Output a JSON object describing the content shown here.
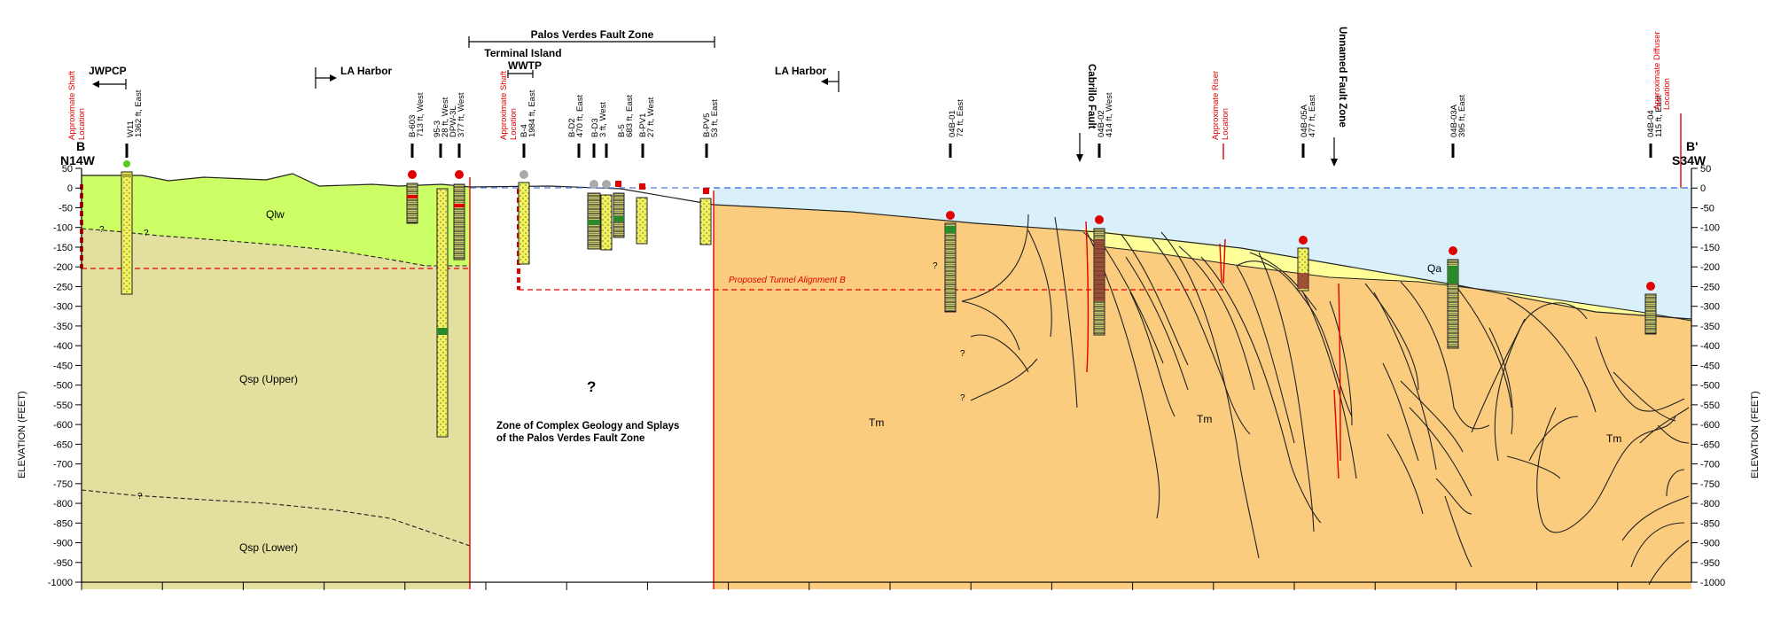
{
  "section": {
    "left_label": "B",
    "left_bearing": "N14W",
    "right_label": "B'",
    "right_bearing": "S34W",
    "y_axis_label": "ELEVATION (FEET)",
    "y_ticks": [
      "50",
      "0",
      "-50",
      "-100",
      "-150",
      "-200",
      "-250",
      "-300",
      "-350",
      "-400",
      "-450",
      "-500",
      "-550",
      "-600",
      "-650",
      "-700",
      "-750",
      "-800",
      "-850",
      "-900",
      "-950",
      "-1000"
    ]
  },
  "top_labels": {
    "jwpcp": "JWPCP",
    "la_harbor_1": "LA Harbor",
    "la_harbor_2": "LA Harbor",
    "pv_fault_zone": "Palos Verdes Fault Zone",
    "terminal_island": "Terminal Island",
    "wwtp": "WWTP",
    "cabrillo_fault": "Cabrillo Fault",
    "unnamed_fault": "Unnamed Fault Zone"
  },
  "red_notes": {
    "shaft_left": [
      "Approximate Shaft",
      "Location"
    ],
    "shaft_mid": [
      "Approximate Shaft",
      "Location"
    ],
    "riser": [
      "Approximate Riser",
      "Location"
    ],
    "diffuser": [
      "Approximate Diffuser",
      "Location"
    ],
    "tunnel": "Proposed Tunnel Alignment B"
  },
  "borings": [
    {
      "name": "W11",
      "offset": "1362 ft, East"
    },
    {
      "name": "B-603",
      "offset": "713 ft, West"
    },
    {
      "name": "95-3",
      "offset": "28 ft, West"
    },
    {
      "name": "DPW-3L",
      "offset": "377 ft, West"
    },
    {
      "name": "B-4",
      "offset": "1984 ft, East"
    },
    {
      "name": "B-D2",
      "offset": "470 ft, East"
    },
    {
      "name": "B-D3",
      "offset": "3 ft, West"
    },
    {
      "name": "B-5",
      "offset": "683 ft, East"
    },
    {
      "name": "B-PV1",
      "offset": "27 ft, West"
    },
    {
      "name": "B-PV5",
      "offset": "53 ft, East"
    },
    {
      "name": "04B-01",
      "offset": "72 ft, East"
    },
    {
      "name": "04B-02",
      "offset": "414 ft, West"
    },
    {
      "name": "04B-05A",
      "offset": "477 ft, East"
    },
    {
      "name": "04B-03A",
      "offset": "395 ft, East"
    },
    {
      "name": "04B-04",
      "offset": "115 ft, East"
    }
  ],
  "units": {
    "qlw": "Qlw",
    "qsp_upper": "Qsp (Upper)",
    "qsp_lower": "Qsp (Lower)",
    "qa": "Qa",
    "tm1": "Tm",
    "tm2": "Tm",
    "tm3": "Tm",
    "zone_q": "?",
    "zone_text_1": "Zone of Complex Geology and Splays",
    "zone_text_2": "of the Palos Verdes Fault Zone"
  },
  "colors": {
    "qlw": "#ccff66",
    "qsp": "#e3df9e",
    "tm": "#fccc7e",
    "qa": "#ffff99",
    "water": "#d9f0fb",
    "fault": "#e00000",
    "boring": "#f2f25a",
    "water_line": "#4a7fe0"
  }
}
